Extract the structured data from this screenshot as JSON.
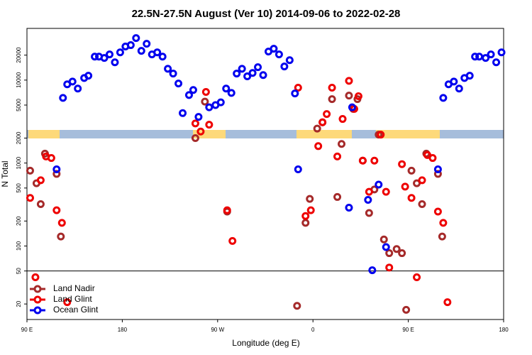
{
  "chart_data": {
    "type": "scatter",
    "title": "22.5N-27.5N August (Ver 10)   2014-09-06 to 2022-02-28",
    "xlabel": "Longitude (deg E)",
    "ylabel": "N Total",
    "xlim": [
      90,
      540
    ],
    "xticks": [
      {
        "value": 90,
        "label": "90 E"
      },
      180,
      {
        "value": 270,
        "label": "90 W"
      },
      {
        "value": 360,
        "label": "0"
      },
      {
        "value": 450,
        "label": "90 E"
      },
      180.0
    ],
    "ylim": [
      13,
      42000
    ],
    "yticks": [
      20,
      50,
      100,
      200,
      500,
      1000,
      2000,
      5000,
      10000,
      20000
    ],
    "log_y": true,
    "hline": 50,
    "legend": "lower left",
    "series": [
      {
        "name": "Land Nadir",
        "color": "#a52a2a",
        "x": [
          93,
          99,
          103,
          107,
          118,
          122,
          249,
          258,
          279,
          345,
          353,
          357,
          364,
          369,
          378,
          383,
          387,
          394,
          398,
          402,
          407,
          413,
          418,
          422,
          427,
          432,
          439,
          444,
          448,
          453,
          458,
          463,
          467,
          478,
          482
        ],
        "values": [
          810,
          570,
          320,
          1300,
          740,
          130,
          2000,
          5500,
          260,
          19,
          190,
          370,
          2600,
          3100,
          5900,
          390,
          1700,
          6500,
          4500,
          5900,
          1070,
          250,
          480,
          2200,
          120,
          82,
          92,
          82,
          17,
          810,
          570,
          320,
          1300,
          740,
          130
        ]
      },
      {
        "name": "Land Glint",
        "color": "#ee0000",
        "x": [
          93,
          98,
          103,
          108,
          113,
          118,
          123,
          128,
          249,
          254,
          259,
          262,
          279,
          284,
          346,
          353,
          358,
          365,
          369,
          373,
          378,
          383,
          388,
          394,
          399,
          403,
          407,
          413,
          418,
          424,
          429,
          432,
          444,
          447,
          453,
          458,
          463,
          468,
          473,
          478,
          483,
          487
        ],
        "values": [
          380,
          42,
          620,
          1200,
          1150,
          270,
          190,
          21,
          3000,
          2400,
          7200,
          2900,
          270,
          115,
          8100,
          230,
          270,
          1600,
          3100,
          3900,
          8100,
          1200,
          3400,
          9800,
          4500,
          6400,
          1070,
          450,
          1070,
          2200,
          450,
          55,
          970,
          520,
          380,
          42,
          620,
          1250,
          1150,
          260,
          190,
          21
        ]
      },
      {
        "name": "Ocean Glint",
        "color": "#0000ee",
        "x": [
          118,
          124,
          128,
          133,
          138,
          144,
          148,
          154,
          158,
          163,
          168,
          173,
          178,
          183,
          188,
          193,
          198,
          203,
          208,
          213,
          218,
          223,
          228,
          233,
          237,
          243,
          247,
          252,
          262,
          268,
          273,
          278,
          283,
          288,
          293,
          298,
          303,
          308,
          313,
          318,
          323,
          328,
          333,
          338,
          343,
          346,
          394,
          397,
          412,
          416,
          422,
          429,
          478,
          483,
          488,
          493,
          498,
          503,
          508,
          513,
          517,
          523,
          528,
          533,
          538
        ],
        "values": [
          840,
          6100,
          8900,
          9600,
          7900,
          10600,
          11300,
          19200,
          19200,
          18500,
          20400,
          16400,
          21600,
          25400,
          26400,
          32100,
          22500,
          27400,
          20400,
          21600,
          19200,
          13700,
          12000,
          9100,
          4000,
          6600,
          7600,
          3600,
          4700,
          5000,
          5400,
          7900,
          7000,
          12000,
          13700,
          11100,
          12200,
          14300,
          11500,
          22100,
          23900,
          20400,
          14600,
          17400,
          6900,
          840,
          290,
          4700,
          360,
          51,
          550,
          97,
          840,
          6100,
          8900,
          9600,
          7900,
          10600,
          11300,
          19200,
          19200,
          18500,
          20400,
          16400,
          21600
        ]
      }
    ]
  }
}
